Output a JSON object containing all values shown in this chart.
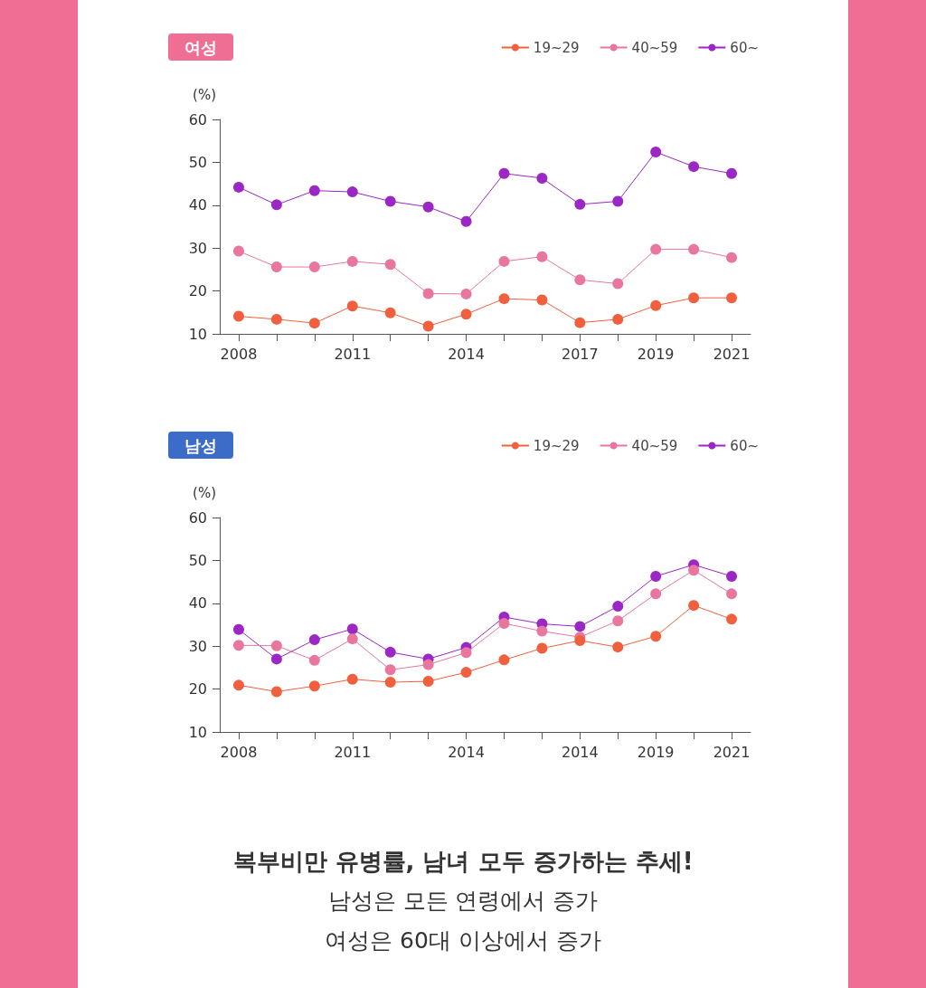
{
  "chart_data": [
    {
      "type": "line",
      "title": "여성",
      "ylabel": "(%)",
      "categories": [
        "2008",
        null,
        null,
        "2011",
        null,
        null,
        "2014",
        null,
        null,
        "2017",
        null,
        "2019",
        null,
        "2021"
      ],
      "ylim": [
        10,
        60
      ],
      "yticks": [
        10,
        20,
        30,
        40,
        50,
        60
      ],
      "grid": false,
      "legend": "top right",
      "marker": "circle",
      "line_style": "solid",
      "series": [
        {
          "name": "19~29",
          "color": "#f0603f",
          "values": [
            14.1,
            13.4,
            12.5,
            16.5,
            14.9,
            11.8,
            14.6,
            18.2,
            17.9,
            12.6,
            13.4,
            16.6,
            18.4,
            18.4
          ]
        },
        {
          "name": "40~59",
          "color": "#e8769e",
          "values": [
            29.3,
            25.6,
            25.6,
            26.9,
            26.2,
            19.4,
            19.3,
            26.9,
            28.0,
            22.6,
            21.7,
            29.7,
            29.7,
            27.8
          ]
        },
        {
          "name": "60~",
          "color": "#9b27c5",
          "values": [
            44.2,
            40.1,
            43.4,
            43.1,
            40.9,
            39.6,
            36.2,
            47.4,
            46.3,
            40.2,
            40.9,
            52.4,
            49.0,
            47.4
          ]
        }
      ]
    },
    {
      "type": "line",
      "title": "남성",
      "ylabel": "(%)",
      "categories": [
        "2008",
        null,
        null,
        "2011",
        null,
        null,
        "2014",
        null,
        null,
        "2014",
        null,
        "2019",
        null,
        "2021"
      ],
      "ylim": [
        10,
        60
      ],
      "yticks": [
        10,
        20,
        30,
        40,
        50,
        60
      ],
      "grid": false,
      "legend": "top right",
      "marker": "circle",
      "line_style": "solid",
      "annotations": [
        "복부비만 유병률, 남녀 모두 증가하는 추세!",
        "남성은 모든 연령에서 증가",
        "여성은 60대 이상에서 증가"
      ],
      "series": [
        {
          "name": "19~29",
          "color": "#f0603f",
          "values": [
            20.9,
            19.4,
            20.7,
            22.3,
            21.6,
            21.8,
            23.9,
            26.8,
            29.5,
            31.3,
            29.8,
            32.3,
            39.5,
            36.3
          ]
        },
        {
          "name": "40~59",
          "color": "#e8769e",
          "values": [
            30.2,
            30.1,
            26.7,
            31.7,
            24.5,
            25.7,
            28.5,
            35.3,
            33.5,
            32.1,
            35.9,
            42.2,
            47.7,
            42.2
          ]
        },
        {
          "name": "60~",
          "color": "#9b27c5",
          "values": [
            33.9,
            27.0,
            31.5,
            34.0,
            28.6,
            27.0,
            29.7,
            36.8,
            35.2,
            34.6,
            39.3,
            46.3,
            49.0,
            46.3
          ]
        }
      ]
    }
  ]
}
